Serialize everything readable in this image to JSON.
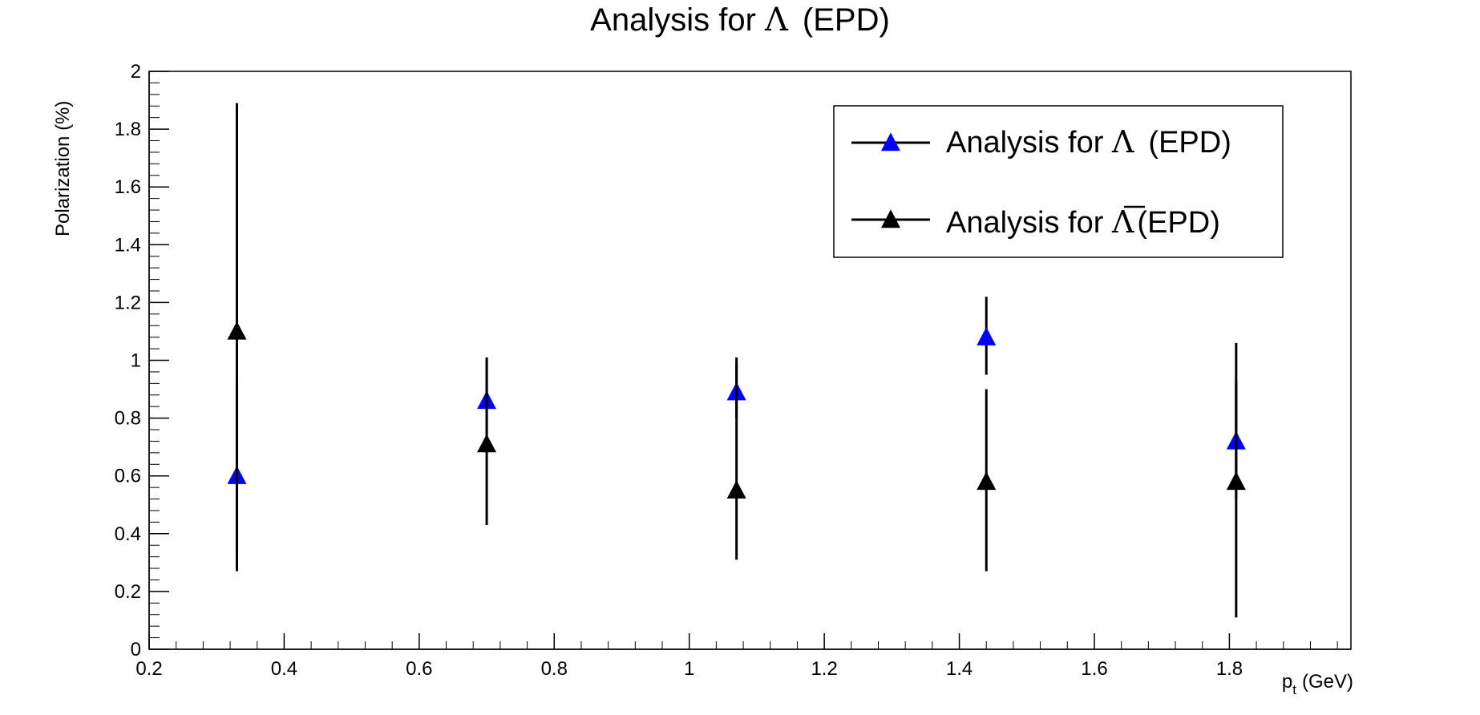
{
  "chart_data": {
    "type": "scatter",
    "title": {
      "prefix": "Analysis for ",
      "symbol": "Λ",
      "suffix": "(EPD)"
    },
    "xlabel": {
      "main": "p",
      "sub": "t",
      "rest": "(GeV)"
    },
    "ylabel": "Polarization (%)",
    "xlim": [
      0.2,
      1.98
    ],
    "ylim": [
      0,
      2
    ],
    "x_ticks": [
      {
        "value": 0.2,
        "label": "0.2"
      },
      {
        "value": 0.4,
        "label": "0.4"
      },
      {
        "value": 0.6,
        "label": "0.6"
      },
      {
        "value": 0.8,
        "label": "0.8"
      },
      {
        "value": 1.0,
        "label": "1"
      },
      {
        "value": 1.2,
        "label": "1.2"
      },
      {
        "value": 1.4,
        "label": "1.4"
      },
      {
        "value": 1.6,
        "label": "1.6"
      },
      {
        "value": 1.8,
        "label": "1.8"
      }
    ],
    "y_ticks": [
      {
        "value": 0,
        "label": "0"
      },
      {
        "value": 0.2,
        "label": "0.2"
      },
      {
        "value": 0.4,
        "label": "0.4"
      },
      {
        "value": 0.6,
        "label": "0.6"
      },
      {
        "value": 0.8,
        "label": "0.8"
      },
      {
        "value": 1.0,
        "label": "1"
      },
      {
        "value": 1.2,
        "label": "1.2"
      },
      {
        "value": 1.4,
        "label": "1.4"
      },
      {
        "value": 1.6,
        "label": "1.6"
      },
      {
        "value": 1.8,
        "label": "1.8"
      },
      {
        "value": 2.0,
        "label": "2"
      }
    ],
    "grid": false,
    "legend_position": "top-right",
    "series": [
      {
        "name": {
          "prefix": "Analysis for ",
          "symbol": "Λ",
          "bar": false,
          "suffix": "(EPD)"
        },
        "color": "#0000ff",
        "points": [
          {
            "x": 0.33,
            "y": 0.6,
            "yerr_low": 0.27,
            "yerr_high": 0.33
          },
          {
            "x": 0.7,
            "y": 0.86,
            "yerr_low": 0.16,
            "yerr_high": 0.14
          },
          {
            "x": 1.07,
            "y": 0.89,
            "yerr_low": 0.09,
            "yerr_high": 0.1
          },
          {
            "x": 1.44,
            "y": 1.08,
            "yerr_low": 0.13,
            "yerr_high": 0.14
          },
          {
            "x": 1.81,
            "y": 0.72,
            "yerr_low": 0.2,
            "yerr_high": 0.21
          }
        ]
      },
      {
        "name": {
          "prefix": "Analysis for ",
          "symbol": "Λ",
          "bar": true,
          "suffix": "(EPD)"
        },
        "color": "#000000",
        "points": [
          {
            "x": 0.33,
            "y": 1.1,
            "yerr_low": 0.83,
            "yerr_high": 0.79
          },
          {
            "x": 0.7,
            "y": 0.71,
            "yerr_low": 0.28,
            "yerr_high": 0.3
          },
          {
            "x": 1.07,
            "y": 0.55,
            "yerr_low": 0.24,
            "yerr_high": 0.46
          },
          {
            "x": 1.44,
            "y": 0.58,
            "yerr_low": 0.31,
            "yerr_high": 0.32
          },
          {
            "x": 1.81,
            "y": 0.58,
            "yerr_low": 0.47,
            "yerr_high": 0.48
          }
        ]
      }
    ]
  }
}
